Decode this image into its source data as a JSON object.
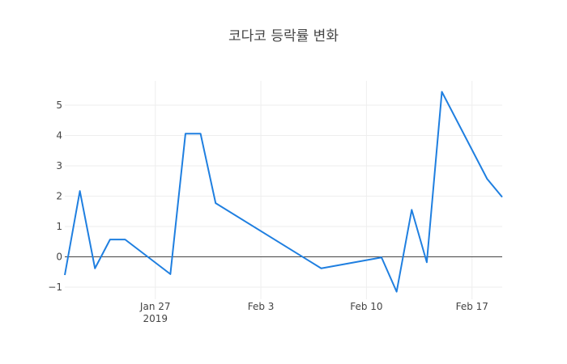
{
  "chart_data": {
    "type": "line",
    "title": "코다코 등락률 변화",
    "xlabel": "",
    "ylabel": "",
    "grid": true,
    "legend": "none",
    "line_color": "#1f7fe0",
    "zero_line_color": "#444444",
    "grid_color": "#eeeeee",
    "x_range": [
      "2019-01-21",
      "2019-02-19"
    ],
    "ylim": [
      -1.4,
      5.8
    ],
    "y_ticks": [
      -1,
      0,
      1,
      2,
      3,
      4,
      5
    ],
    "y_tick_labels": [
      "−1",
      "0",
      "1",
      "2",
      "3",
      "4",
      "5"
    ],
    "x_ticks": [
      {
        "date": "2019-01-27",
        "label": "Jan 27",
        "sublabel": "2019"
      },
      {
        "date": "2019-02-03",
        "label": "Feb 3",
        "sublabel": ""
      },
      {
        "date": "2019-02-10",
        "label": "Feb 10",
        "sublabel": ""
      },
      {
        "date": "2019-02-17",
        "label": "Feb 17",
        "sublabel": ""
      }
    ],
    "series": [
      {
        "x": [
          "2019-01-21",
          "2019-01-22",
          "2019-01-23",
          "2019-01-24",
          "2019-01-25",
          "2019-01-28",
          "2019-01-29",
          "2019-01-30",
          "2019-01-31",
          "2019-02-07",
          "2019-02-11",
          "2019-02-12",
          "2019-02-13",
          "2019-02-14",
          "2019-02-15",
          "2019-02-18",
          "2019-02-19"
        ],
        "values": [
          -0.6,
          2.17,
          -0.38,
          0.57,
          0.57,
          -0.57,
          4.06,
          4.06,
          1.77,
          -0.38,
          -0.02,
          -1.15,
          1.55,
          -0.18,
          5.44,
          2.57,
          1.97
        ]
      }
    ]
  }
}
